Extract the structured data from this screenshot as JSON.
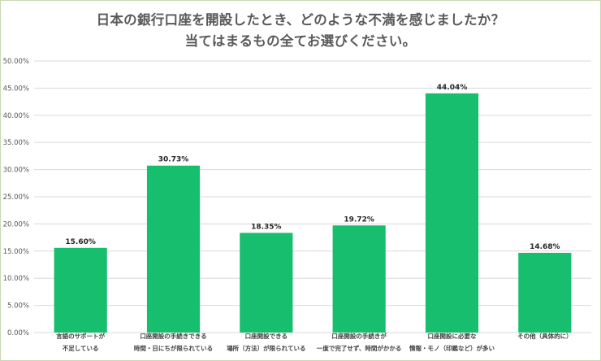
{
  "chart_data": {
    "type": "bar",
    "title_lines": [
      "日本の銀行口座を開設したとき、どのような不満を感じましたか？",
      "当てはまるもの全てお選びください。"
    ],
    "categories": [
      [
        "言語のサポートが",
        "不足している"
      ],
      [
        "口座開設の手続きできる",
        "時間・日にちが限られている"
      ],
      [
        "口座開設できる",
        "場所（方法）が限られている"
      ],
      [
        "口座開設の手続きが",
        "一度で完了せず、時間がかかる"
      ],
      [
        "口座開設に必要な",
        "情報・モノ（印鑑など）が多い"
      ],
      [
        "その他（具体的に）"
      ]
    ],
    "values": [
      15.6,
      30.73,
      18.35,
      19.72,
      44.04,
      14.68
    ],
    "value_labels": [
      "15.60%",
      "30.73%",
      "18.35%",
      "19.72%",
      "44.04%",
      "14.68%"
    ],
    "y_ticks": [
      "0.00%",
      "5.00%",
      "10.00%",
      "15.00%",
      "20.00%",
      "25.00%",
      "30.00%",
      "35.00%",
      "40.00%",
      "45.00%",
      "50.00%"
    ],
    "ylim": [
      0,
      50
    ],
    "grid": true,
    "bar_color": "#17be6e",
    "grid_color": "#d9d9d9"
  }
}
